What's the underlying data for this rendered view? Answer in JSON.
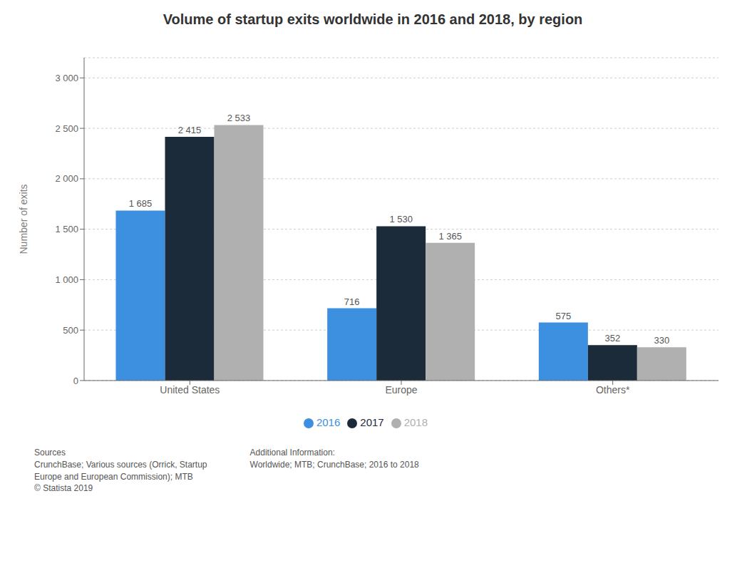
{
  "chart_data": {
    "type": "bar",
    "title": "Volume of startup exits worldwide in 2016 and 2018, by region",
    "ylabel": "Number of exits",
    "categories": [
      "United States",
      "Europe",
      "Others*"
    ],
    "series": [
      {
        "name": "2016",
        "color": "#3d8fe0",
        "values": [
          1685,
          716,
          575
        ],
        "value_labels": [
          "1 685",
          "716",
          "575"
        ]
      },
      {
        "name": "2017",
        "color": "#1c2b3a",
        "values": [
          2415,
          1530,
          352
        ],
        "value_labels": [
          "2 415",
          "1 530",
          "352"
        ]
      },
      {
        "name": "2018",
        "color": "#b0b0b0",
        "values": [
          2533,
          1365,
          330
        ],
        "value_labels": [
          "2 533",
          "1 365",
          "330"
        ]
      }
    ],
    "ylim": [
      0,
      3200
    ],
    "yticks": [
      {
        "value": 0,
        "label": "0"
      },
      {
        "value": 500,
        "label": "500"
      },
      {
        "value": 1000,
        "label": "1 000"
      },
      {
        "value": 1500,
        "label": "1 500"
      },
      {
        "value": 2000,
        "label": "2 000"
      },
      {
        "value": 2500,
        "label": "2 500"
      },
      {
        "value": 3000,
        "label": "3 000"
      }
    ],
    "grid": true,
    "legend": "bottom",
    "data_labels": true,
    "annotations": [
      "Sources\nCrunchBase; Various sources (Orrick, Startup\nEurope and European Commission); MTB\n© Statista 2019",
      "Additional Information:\nWorldwide; MTB; CrunchBase; 2016 to 2018"
    ]
  }
}
